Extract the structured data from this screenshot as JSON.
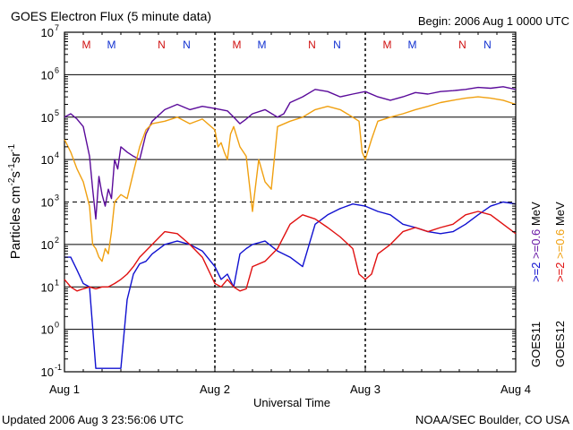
{
  "header": {
    "title": "GOES Electron Flux (5 minute data)",
    "begin": "Begin: 2006 Aug 1 0000 UTC"
  },
  "footer": {
    "updated": "Updated 2006 Aug  3 23:56:06 UTC",
    "credit": "NOAA/SEC Boulder, CO USA"
  },
  "chart_data": {
    "type": "line",
    "title": "GOES Electron Flux (5 minute data)",
    "xlabel": "Universal Time",
    "ylabel_parts": [
      "Particles cm",
      "-2",
      "s",
      "-1",
      "sr",
      "-1"
    ],
    "xlim": [
      0,
      72
    ],
    "x_unit": "hours since 2006 Aug 1 0000 UTC",
    "x_ticks": [
      {
        "x": 0,
        "label": "Aug 1"
      },
      {
        "x": 24,
        "label": "Aug 2"
      },
      {
        "x": 48,
        "label": "Aug 3"
      },
      {
        "x": 72,
        "label": "Aug 4"
      }
    ],
    "y_scale": "log",
    "ylim": [
      0.1,
      10000000
    ],
    "y_ticks": [
      {
        "v": 0.1,
        "exp": "-1"
      },
      {
        "v": 1,
        "exp": "0"
      },
      {
        "v": 10,
        "exp": "1"
      },
      {
        "v": 100,
        "exp": "2"
      },
      {
        "v": 1000,
        "exp": "3"
      },
      {
        "v": 10000,
        "exp": "4"
      },
      {
        "v": 100000,
        "exp": "5"
      },
      {
        "v": 1000000,
        "exp": "6"
      },
      {
        "v": 10000000,
        "exp": "7"
      }
    ],
    "threshold_lines": [
      1000
    ],
    "grid": true,
    "markers": [
      {
        "x": 3.5,
        "label": "M",
        "color": "#d01010"
      },
      {
        "x": 7.5,
        "label": "M",
        "color": "#1030d0"
      },
      {
        "x": 15.5,
        "label": "N",
        "color": "#d01010"
      },
      {
        "x": 19.5,
        "label": "N",
        "color": "#1030d0"
      },
      {
        "x": 27.5,
        "label": "M",
        "color": "#d01010"
      },
      {
        "x": 31.5,
        "label": "M",
        "color": "#1030d0"
      },
      {
        "x": 39.5,
        "label": "N",
        "color": "#d01010"
      },
      {
        "x": 43.5,
        "label": "N",
        "color": "#1030d0"
      },
      {
        "x": 51.5,
        "label": "M",
        "color": "#d01010"
      },
      {
        "x": 55.5,
        "label": "M",
        "color": "#1030d0"
      },
      {
        "x": 63.5,
        "label": "N",
        "color": "#d01010"
      },
      {
        "x": 67.5,
        "label": "N",
        "color": "#1030d0"
      }
    ],
    "legend": {
      "placement": "right, vertical",
      "sat_left": "GOES11",
      "sat_right": "GOES12",
      "entries": [
        {
          "text": ">=2",
          "color": "#1010d0",
          "col": "left"
        },
        {
          "text": ">=0.6",
          "color": "#6a1aa6",
          "col": "left"
        },
        {
          "text": "MeV",
          "color": "#000000",
          "col": "left"
        },
        {
          "text": ">=2",
          "color": "#e01010",
          "col": "right"
        },
        {
          "text": ">=0.6",
          "color": "#f0a010",
          "col": "right"
        },
        {
          "text": "MeV",
          "color": "#000000",
          "col": "right"
        }
      ]
    },
    "series": [
      {
        "name": "GOES11 >=0.6 MeV",
        "color": "#5a0a9a",
        "x": [
          0,
          1,
          2,
          3,
          4,
          4.5,
          5,
          5.5,
          6,
          6.5,
          7,
          7.5,
          8,
          8.5,
          9,
          10,
          11,
          12,
          13,
          14,
          16,
          18,
          20,
          22,
          24,
          25,
          26,
          27,
          28,
          29,
          30,
          32,
          34,
          35,
          36,
          38,
          40,
          42,
          44,
          46,
          48,
          50,
          52,
          54,
          56,
          58,
          60,
          62,
          64,
          66,
          68,
          70,
          72
        ],
        "y": [
          100000,
          120000,
          90000,
          60000,
          12000,
          2000,
          400,
          4000,
          1500,
          800,
          2000,
          1200,
          10000,
          6000,
          20000,
          15000,
          12000,
          10000,
          40000,
          80000,
          150000,
          200000,
          150000,
          180000,
          160000,
          150000,
          140000,
          100000,
          70000,
          90000,
          120000,
          150000,
          100000,
          120000,
          220000,
          300000,
          450000,
          400000,
          300000,
          350000,
          400000,
          300000,
          250000,
          300000,
          380000,
          350000,
          400000,
          420000,
          450000,
          500000,
          480000,
          520000,
          450000
        ]
      },
      {
        "name": "GOES12 >=0.6 MeV",
        "color": "#f0a010",
        "x": [
          0,
          1,
          2,
          3,
          4,
          4.5,
          5,
          5.5,
          6,
          6.5,
          7,
          7.5,
          8,
          9,
          10,
          11,
          12,
          13,
          14,
          16,
          18,
          20,
          22,
          24,
          24.5,
          25,
          25.5,
          26,
          26.5,
          27,
          28,
          29,
          30,
          31,
          32,
          33,
          34,
          36,
          38,
          40,
          42,
          44,
          46,
          47,
          47.5,
          48,
          49,
          50,
          52,
          54,
          56,
          58,
          60,
          62,
          64,
          66,
          68,
          70,
          72
        ],
        "y": [
          30000,
          15000,
          6000,
          3000,
          800,
          100,
          80,
          50,
          40,
          80,
          60,
          200,
          1000,
          1500,
          1200,
          5000,
          20000,
          50000,
          70000,
          80000,
          100000,
          70000,
          90000,
          50000,
          20000,
          25000,
          15000,
          10000,
          40000,
          60000,
          20000,
          12000,
          600,
          10000,
          3000,
          2000,
          60000,
          80000,
          100000,
          150000,
          180000,
          150000,
          100000,
          80000,
          15000,
          10000,
          30000,
          80000,
          100000,
          120000,
          150000,
          180000,
          220000,
          250000,
          280000,
          300000,
          280000,
          250000,
          200000
        ]
      },
      {
        "name": "GOES11 >=2 MeV",
        "color": "#1010d0",
        "x": [
          0,
          1,
          2,
          3,
          4,
          5,
          5.5,
          6,
          7,
          8,
          9,
          10,
          11,
          12,
          13,
          14,
          16,
          18,
          20,
          22,
          24,
          25,
          26,
          27,
          28,
          29,
          30,
          32,
          34,
          36,
          38,
          40,
          42,
          44,
          46,
          48,
          50,
          52,
          54,
          56,
          58,
          60,
          62,
          64,
          66,
          68,
          70,
          72
        ],
        "y": [
          50,
          50,
          25,
          12,
          10,
          0.12,
          0.12,
          0.12,
          0.12,
          0.12,
          0.12,
          5,
          20,
          35,
          40,
          60,
          100,
          120,
          100,
          70,
          30,
          15,
          20,
          10,
          60,
          80,
          100,
          120,
          70,
          50,
          30,
          300,
          500,
          700,
          900,
          800,
          600,
          500,
          300,
          250,
          200,
          180,
          200,
          300,
          500,
          800,
          1000,
          900
        ]
      },
      {
        "name": "GOES12 >=2 MeV",
        "color": "#e01010",
        "x": [
          0,
          1,
          2,
          3,
          4,
          5,
          6,
          7,
          8,
          9,
          10,
          11,
          12,
          14,
          16,
          18,
          20,
          22,
          24,
          25,
          26,
          27,
          28,
          29,
          30,
          32,
          34,
          36,
          38,
          40,
          42,
          44,
          46,
          47,
          48,
          49,
          50,
          52,
          54,
          56,
          58,
          60,
          62,
          64,
          66,
          68,
          70,
          72
        ],
        "y": [
          15,
          10,
          8,
          9,
          10,
          9,
          10,
          10,
          12,
          15,
          20,
          30,
          50,
          100,
          200,
          180,
          100,
          50,
          12,
          10,
          15,
          10,
          8,
          9,
          30,
          40,
          80,
          300,
          500,
          400,
          250,
          150,
          80,
          20,
          15,
          20,
          60,
          100,
          200,
          250,
          200,
          250,
          300,
          500,
          600,
          500,
          300,
          180
        ]
      }
    ]
  }
}
